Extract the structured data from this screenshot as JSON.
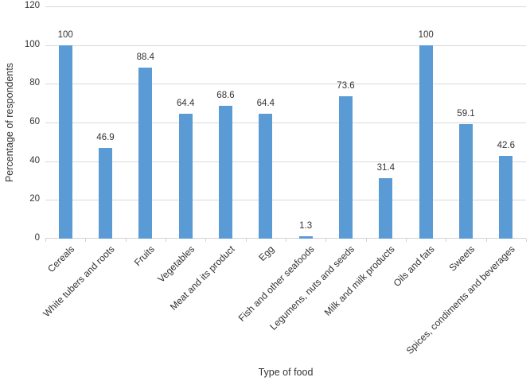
{
  "chart_data": {
    "type": "bar",
    "title": "",
    "xlabel": "Type of food",
    "ylabel": "Percentage of respondents",
    "categories": [
      "Cereals",
      "White tubers and roots",
      "Fruits",
      "Vegetables",
      "Meat and its product",
      "Egg",
      "Fish and other seafoods",
      "Legumens, nuts and seeds",
      "Milk and milk products",
      "Oils and fats",
      "Sweets",
      "Spices, condiments and beverages"
    ],
    "values": [
      100,
      46.9,
      88.4,
      64.4,
      68.6,
      64.4,
      1.3,
      73.6,
      31.4,
      100,
      59.1,
      42.6
    ],
    "value_labels": [
      "100",
      "46.9",
      "88.4",
      "64.4",
      "68.6",
      "64.4",
      "1.3",
      "73.6",
      "31.4",
      "100",
      "59.1",
      "42.6"
    ],
    "ylim": [
      0,
      120
    ],
    "yticks": [
      0,
      20,
      40,
      60,
      80,
      100,
      120
    ],
    "grid": "horizontal",
    "legend": "none",
    "colors": {
      "bar": "#5b9bd5",
      "gridline": "#d9d9d9",
      "axis_line": "#d3d3d3",
      "text": "#333333",
      "background": "#ffffff"
    }
  }
}
